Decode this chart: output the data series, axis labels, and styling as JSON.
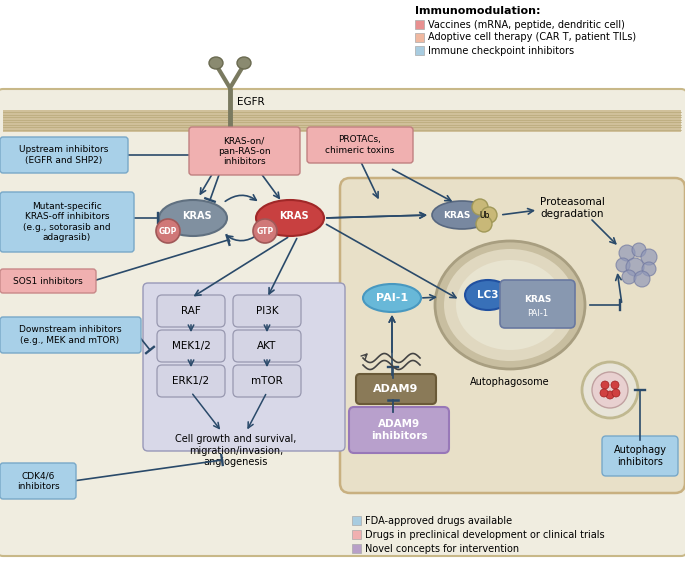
{
  "immunomod_legend": {
    "title": "Immunomodulation:",
    "items": [
      {
        "color": "#e89090",
        "text": "Vaccines (mRNA, peptide, dendritic cell)"
      },
      {
        "color": "#f0b8a0",
        "text": "Adoptive cell therapy (CAR T, patient TILs)"
      },
      {
        "color": "#a8cce0",
        "text": "Immune checkpoint inhibitors"
      }
    ]
  },
  "bottom_legend": [
    {
      "color": "#a8cce0",
      "text": "FDA-approved drugs available"
    },
    {
      "color": "#f0b0b0",
      "text": "Drugs in preclinical development or clinical trials"
    },
    {
      "color": "#b8a0c8",
      "text": "Novel concepts for intervention"
    }
  ],
  "arrow_color": "#2a4a6a",
  "cell_bg": "#f0ede0",
  "membrane_color": "#c8b890",
  "auto_region_bg": "#e8e0c8",
  "pathway_bg": "#d8d8e8",
  "blue_label": "#a8d0e8",
  "pink_label": "#f0b0b0",
  "purple_label": "#b8a0cc"
}
